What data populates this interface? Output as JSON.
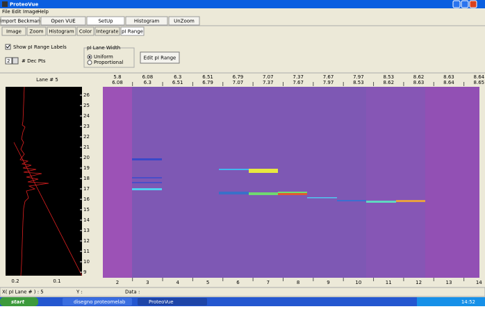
{
  "window": {
    "title": "ProteoVue"
  },
  "menu": [
    "File",
    "Edit",
    "Image",
    "Help"
  ],
  "toolbar": [
    "Import Beckman",
    "Open VUE",
    "SetUp",
    "Histogram",
    "UnZoom"
  ],
  "tabs": [
    "Image",
    "Zoom",
    "Histogram",
    "Color",
    "Integrate",
    "pI Range"
  ],
  "options": {
    "show_labels": "Show pI Range Labels",
    "dec_pts_value": "2",
    "dec_pts_label": "# Dec Pts",
    "lane_width_title": "pI Lane Width",
    "uniform": "Uniform",
    "proportional": "Proportional",
    "edit_button": "Edit pI Range"
  },
  "profile": {
    "title": "Lane # 5",
    "y_labels": [
      "26",
      "25",
      "24",
      "23",
      "22",
      "21",
      "20",
      "19",
      "18",
      "17",
      "16",
      "15",
      "14",
      "13",
      "12",
      "11",
      "10",
      "9"
    ],
    "x_labels": [
      "0.2",
      "0.1"
    ]
  },
  "gel": {
    "lanes": [
      {
        "number": "2",
        "pi_low": "5.8",
        "pi_high": "6.08"
      },
      {
        "number": "3",
        "pi_low": "6.08",
        "pi_high": "6.3"
      },
      {
        "number": "4",
        "pi_low": "6.3",
        "pi_high": "6.51"
      },
      {
        "number": "5",
        "pi_low": "6.51",
        "pi_high": "6.79"
      },
      {
        "number": "6",
        "pi_low": "6.79",
        "pi_high": "7.07"
      },
      {
        "number": "7",
        "pi_low": "7.07",
        "pi_high": "7.37"
      },
      {
        "number": "8",
        "pi_low": "7.37",
        "pi_high": "7.67"
      },
      {
        "number": "9",
        "pi_low": "7.67",
        "pi_high": "7.97"
      },
      {
        "number": "10",
        "pi_low": "7.97",
        "pi_high": "8.53"
      },
      {
        "number": "11",
        "pi_low": "8.53",
        "pi_high": "8.62"
      },
      {
        "number": "12",
        "pi_low": "8.62",
        "pi_high": "8.63"
      },
      {
        "number": "13",
        "pi_low": "8.63",
        "pi_high": "8.64"
      },
      {
        "number": "14",
        "pi_low": "8.64",
        "pi_high": "8.65"
      }
    ]
  },
  "status": [
    "X( pI Lane # ) : 5",
    "Y :",
    "Data :"
  ],
  "taskbar": {
    "start": "start",
    "items": [
      "disegno proteomelab",
      "ProteoVue"
    ],
    "clock": "14:52"
  }
}
